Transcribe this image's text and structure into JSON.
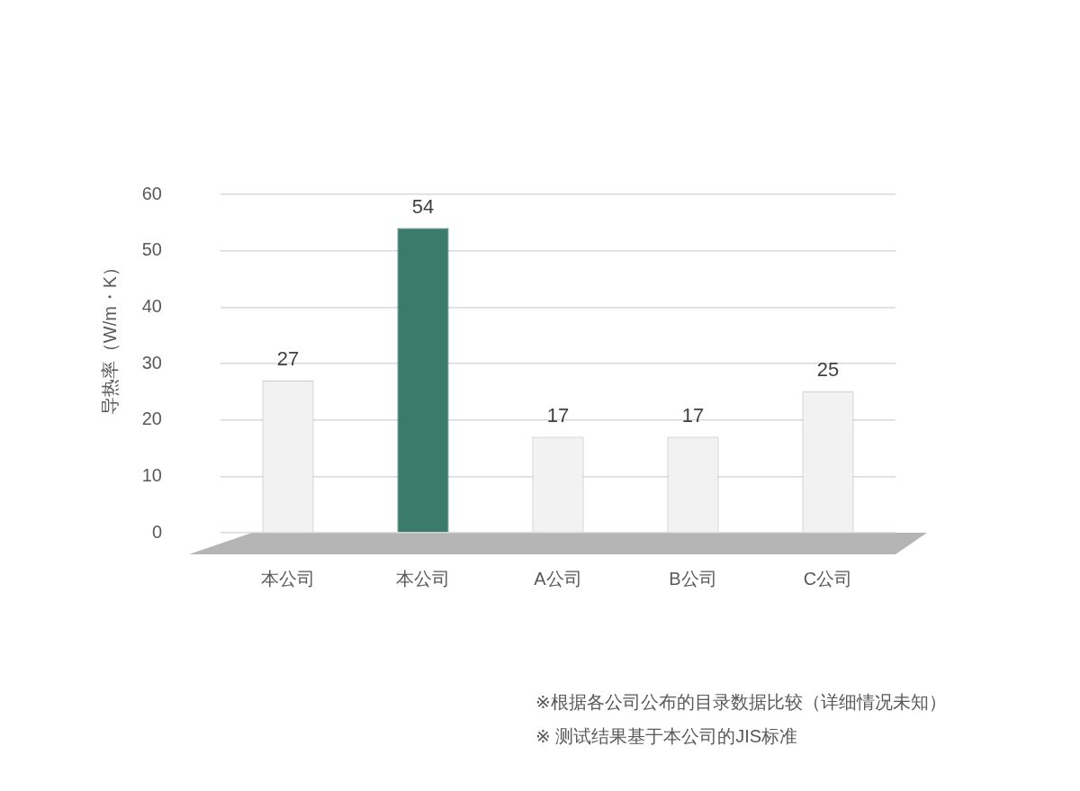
{
  "chart_data": {
    "type": "bar",
    "categories": [
      "本公司",
      "本公司",
      "A公司",
      "B公司",
      "C公司"
    ],
    "values": [
      27,
      54,
      17,
      17,
      25
    ],
    "colors": [
      "#f2f2f2",
      "#3b7b6b",
      "#f2f2f2",
      "#f2f2f2",
      "#f2f2f2"
    ],
    "ylabel": "导热率（W/m・K）",
    "ylim": [
      0,
      60
    ],
    "yticks": [
      0,
      10,
      20,
      30,
      40,
      50,
      60
    ],
    "grid": "y",
    "data_labels": true,
    "annotations": [
      "※根据各公司公布的目录数据比较（详细情况未知）",
      "※ 测试结果基于本公司的JIS标准"
    ]
  }
}
